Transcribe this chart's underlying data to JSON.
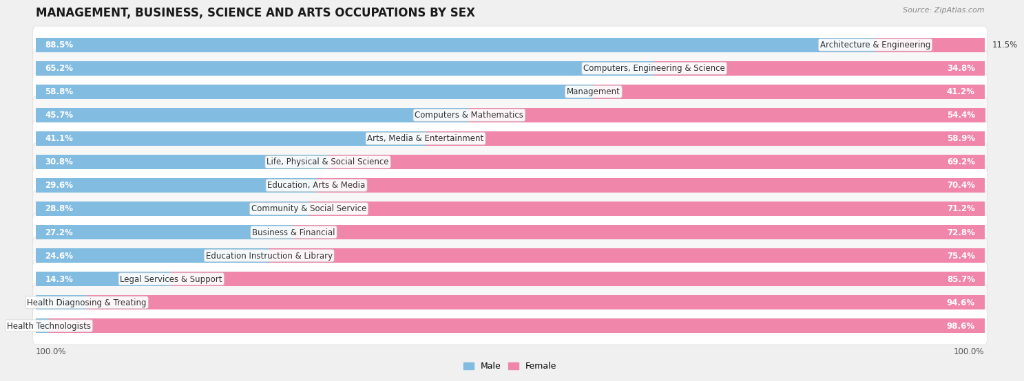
{
  "title": "MANAGEMENT, BUSINESS, SCIENCE AND ARTS OCCUPATIONS BY SEX",
  "source": "Source: ZipAtlas.com",
  "categories": [
    "Architecture & Engineering",
    "Computers, Engineering & Science",
    "Management",
    "Computers & Mathematics",
    "Arts, Media & Entertainment",
    "Life, Physical & Social Science",
    "Education, Arts & Media",
    "Community & Social Service",
    "Business & Financial",
    "Education Instruction & Library",
    "Legal Services & Support",
    "Health Diagnosing & Treating",
    "Health Technologists"
  ],
  "male_pct": [
    88.5,
    65.2,
    58.8,
    45.7,
    41.1,
    30.8,
    29.6,
    28.8,
    27.2,
    24.6,
    14.3,
    5.4,
    1.4
  ],
  "female_pct": [
    11.5,
    34.8,
    41.2,
    54.4,
    58.9,
    69.2,
    70.4,
    71.2,
    72.8,
    75.4,
    85.7,
    94.6,
    98.6
  ],
  "male_color": "#82bce0",
  "female_color": "#f086aa",
  "bg_color": "#f0f0f0",
  "row_bg_even": "#ffffff",
  "row_bg_odd": "#f7f7f7",
  "title_fontsize": 12,
  "label_fontsize": 8.5,
  "pct_fontsize": 8.5,
  "legend_fontsize": 9,
  "source_fontsize": 8
}
